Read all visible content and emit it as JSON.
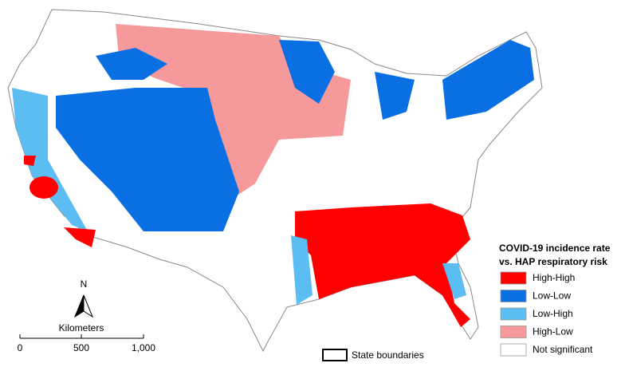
{
  "north_arrow": {
    "label": "N"
  },
  "scale_bar": {
    "title": "Kilometers",
    "ticks": [
      "0",
      "500",
      "1,000"
    ]
  },
  "boundary_legend": {
    "label": "State boundaries"
  },
  "legend": {
    "title": [
      "COVID-19 incidence rate",
      "vs. HAP respiratory risk"
    ],
    "items": [
      {
        "label": "High-High",
        "color": "#ff0000"
      },
      {
        "label": "Low-Low",
        "color": "#0a6fe3"
      },
      {
        "label": "Low-High",
        "color": "#5cbdf2"
      },
      {
        "label": "High-Low",
        "color": "#f5999b"
      },
      {
        "label": "Not significant",
        "color": "#ffffff"
      }
    ]
  }
}
